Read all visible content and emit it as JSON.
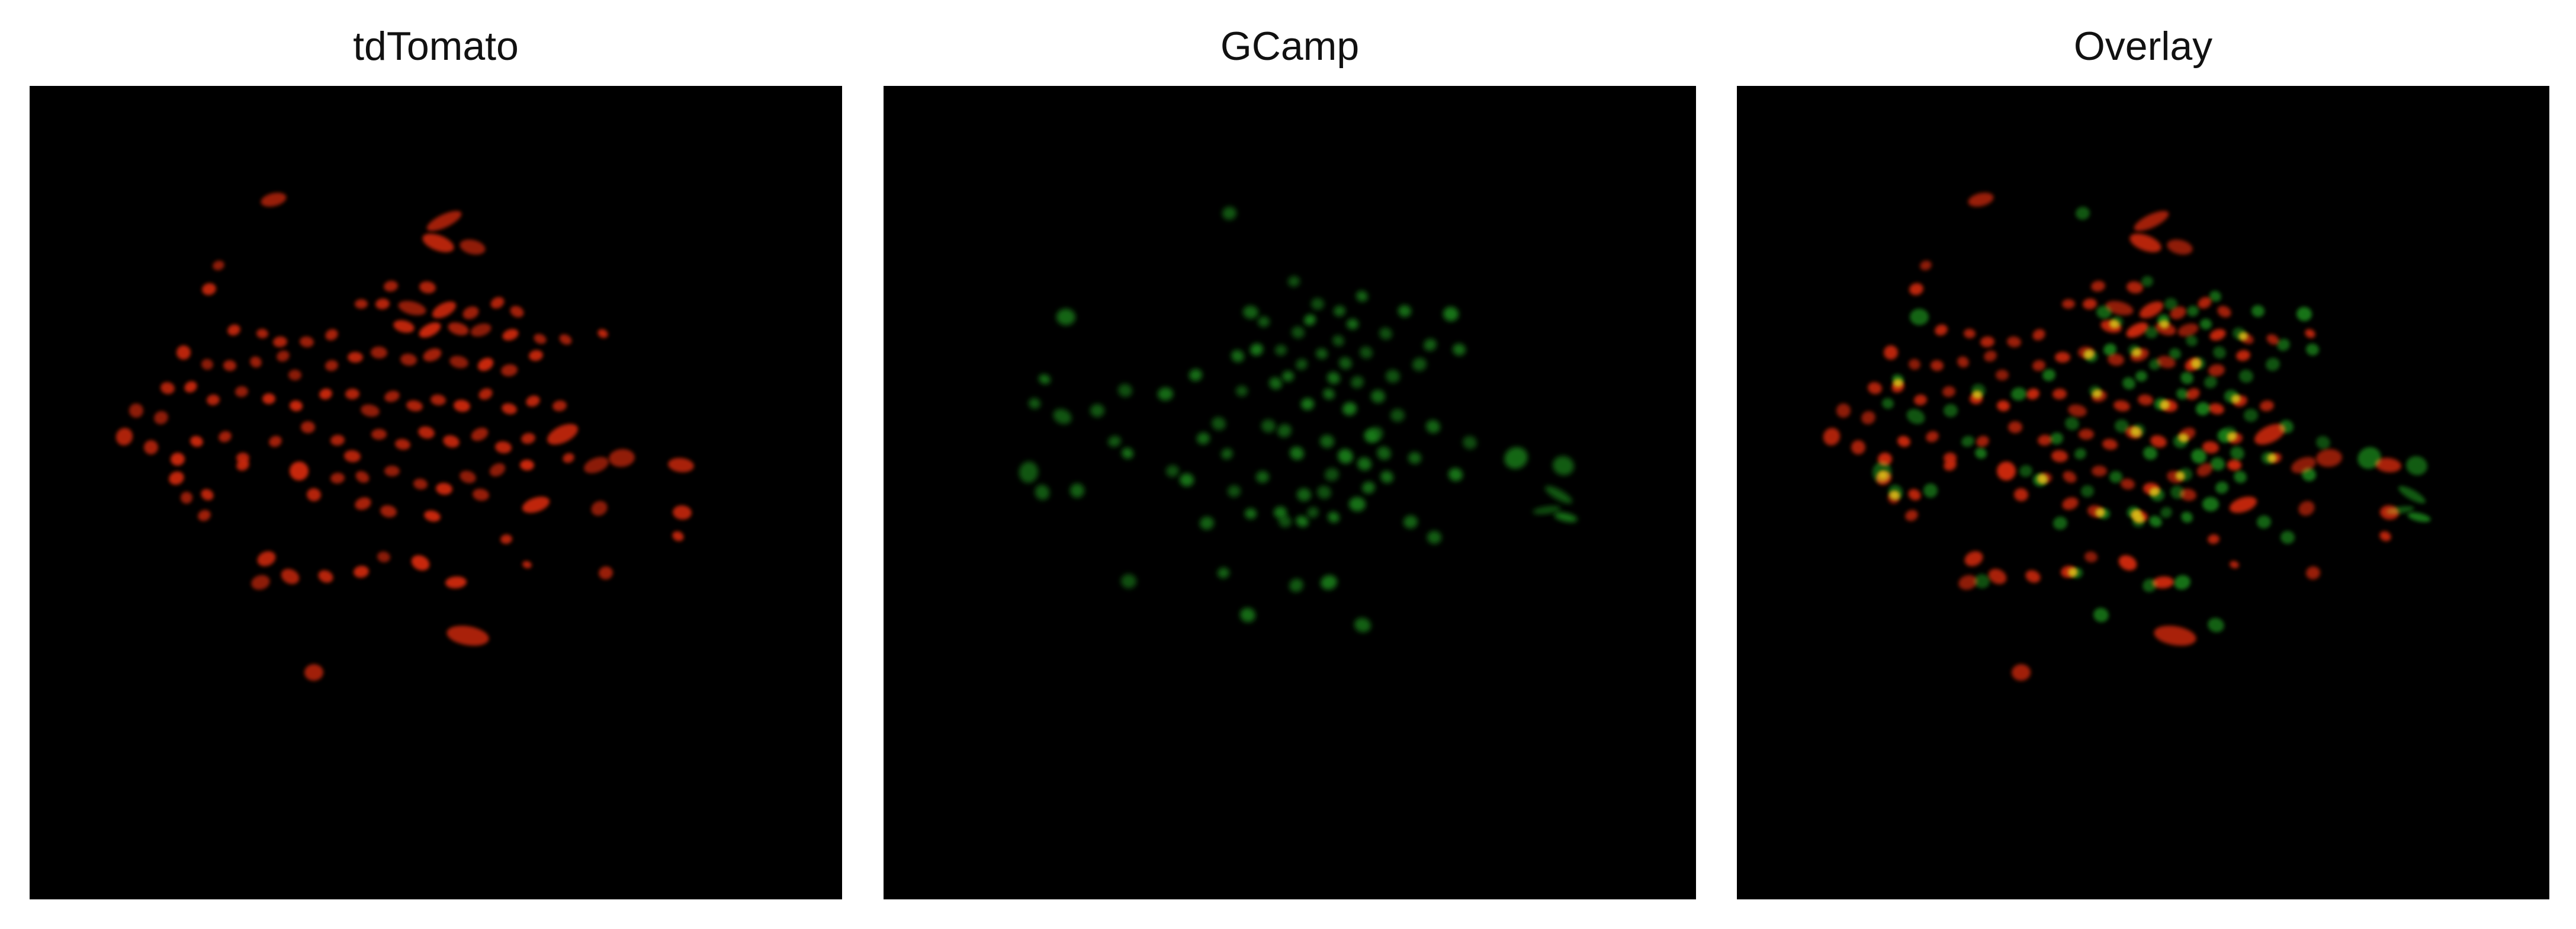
{
  "figure": {
    "panels": [
      {
        "title": "tdTomato",
        "channel": "red"
      },
      {
        "title": "GCamp",
        "channel": "green"
      },
      {
        "title": "Overlay",
        "channel": "merged"
      }
    ]
  },
  "colors": {
    "background": "#000000",
    "tdTomato": "#d42a10",
    "GCamp": "#1f8c1f",
    "colocalized": "#d8c019"
  }
}
